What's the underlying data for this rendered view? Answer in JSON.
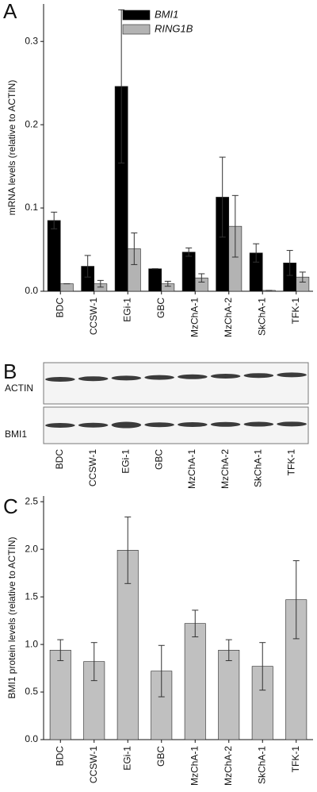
{
  "panel_labels": [
    "A",
    "B",
    "C"
  ],
  "chart_data": [
    {
      "type": "bar",
      "ylabel": "mRNA levels (relative to ACTIN)",
      "categories": [
        "BDC",
        "CCSW-1",
        "EGi-1",
        "GBC",
        "MzChA-1",
        "MzChA-2",
        "SkChA-1",
        "TFK-1"
      ],
      "series": [
        {
          "name": "BMI1",
          "color": "#000000",
          "values": [
            0.085,
            0.03,
            0.246,
            0.027,
            0.047,
            0.113,
            0.046,
            0.034
          ],
          "errors": [
            0.01,
            0.013,
            0.092,
            0.0,
            0.005,
            0.048,
            0.011,
            0.015
          ]
        },
        {
          "name": "RING1B",
          "color": "#b3b3b3",
          "values": [
            0.009,
            0.009,
            0.051,
            0.009,
            0.016,
            0.078,
            0.001,
            0.017
          ],
          "errors": [
            0.0,
            0.004,
            0.019,
            0.003,
            0.005,
            0.037,
            0.0,
            0.006
          ]
        }
      ],
      "ylim": [
        0,
        0.345
      ],
      "yticks": [
        {
          "value": 0,
          "label": "0.0"
        },
        0.1,
        0.2,
        0.3
      ],
      "legend": "top-center"
    },
    {
      "type": "bar",
      "ylabel": "BMI1 protein levels (relative to ACTIN)",
      "categories": [
        "BDC",
        "CCSW-1",
        "EGi-1",
        "GBC",
        "MzChA-1",
        "MzChA-2",
        "SkChA-1",
        "TFK-1"
      ],
      "series": [
        {
          "color": "#c0c0c0",
          "values": [
            0.94,
            0.82,
            1.99,
            0.72,
            1.22,
            0.94,
            0.77,
            1.47
          ],
          "errors": [
            0.11,
            0.2,
            0.35,
            0.27,
            0.14,
            0.11,
            0.25,
            0.41
          ]
        }
      ],
      "ylim": [
        0,
        2.56
      ],
      "yticks": [
        {
          "value": 0,
          "label": "0.0"
        },
        0.5,
        {
          "value": 1,
          "label": "1.0"
        },
        1.5,
        {
          "value": 2,
          "label": "2.0"
        },
        2.5
      ]
    }
  ],
  "blot": {
    "rows": [
      "ACTIN",
      "BMI1"
    ],
    "lanes": [
      "BDC",
      "CCSW-1",
      "EGi-1",
      "GBC",
      "MzChA-1",
      "MzChA-2",
      "SkChA-1",
      "TFK-1"
    ]
  }
}
